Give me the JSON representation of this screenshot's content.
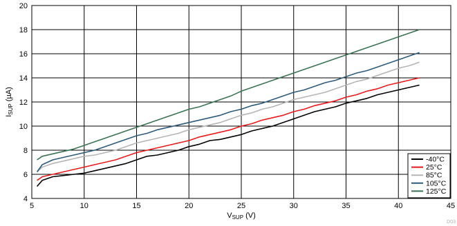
{
  "chart_data": {
    "type": "line",
    "xlabel": {
      "main": "V",
      "sub": "SUP",
      "unit": " (V)"
    },
    "ylabel": {
      "main": "I",
      "sub": "SUP",
      "unit": " (µA)"
    },
    "xlim": [
      5,
      45
    ],
    "ylim": [
      4,
      20
    ],
    "xticks": [
      "5",
      "10",
      "15",
      "20",
      "25",
      "30",
      "35",
      "40",
      "45"
    ],
    "yticks": [
      "4",
      "6",
      "8",
      "10",
      "12",
      "14",
      "16",
      "18",
      "20"
    ],
    "grid": true,
    "legend_position": "bottom-right",
    "watermark": "D03",
    "series": [
      {
        "name": "-40°C",
        "color": "#000000",
        "x": [
          5.5,
          6,
          7,
          8,
          9,
          10,
          11,
          12,
          13,
          14,
          15,
          16,
          17,
          18,
          19,
          20,
          21,
          22,
          23,
          24,
          25,
          26,
          27,
          28,
          29,
          30,
          31,
          32,
          33,
          34,
          35,
          36,
          37,
          38,
          39,
          40,
          41,
          42
        ],
        "y": [
          5.0,
          5.5,
          5.8,
          5.9,
          6.0,
          6.1,
          6.3,
          6.5,
          6.7,
          6.9,
          7.2,
          7.5,
          7.6,
          7.8,
          8.0,
          8.3,
          8.5,
          8.8,
          8.9,
          9.1,
          9.3,
          9.6,
          9.8,
          10.0,
          10.3,
          10.6,
          10.9,
          11.2,
          11.4,
          11.6,
          11.9,
          12.1,
          12.3,
          12.6,
          12.8,
          13.0,
          13.2,
          13.4
        ]
      },
      {
        "name": "25°C",
        "color": "#e8191c",
        "x": [
          5.5,
          6,
          7,
          8,
          9,
          10,
          11,
          12,
          13,
          14,
          15,
          16,
          17,
          18,
          19,
          20,
          21,
          22,
          23,
          24,
          25,
          26,
          27,
          28,
          29,
          30,
          31,
          32,
          33,
          34,
          35,
          36,
          37,
          38,
          39,
          40,
          41,
          42
        ],
        "y": [
          5.5,
          5.8,
          6.0,
          6.2,
          6.4,
          6.6,
          6.8,
          7.0,
          7.2,
          7.5,
          7.8,
          8.0,
          8.2,
          8.4,
          8.6,
          8.8,
          9.1,
          9.3,
          9.5,
          9.7,
          10.0,
          10.2,
          10.5,
          10.7,
          10.9,
          11.2,
          11.4,
          11.7,
          11.9,
          12.1,
          12.4,
          12.6,
          12.9,
          13.1,
          13.4,
          13.6,
          13.8,
          14.0
        ]
      },
      {
        "name": "85°C",
        "color": "#b5b5b5",
        "x": [
          5.5,
          6,
          7,
          8,
          9,
          10,
          11,
          12,
          13,
          14,
          15,
          16,
          17,
          18,
          19,
          20,
          21,
          22,
          23,
          24,
          25,
          26,
          27,
          28,
          29,
          30,
          31,
          32,
          33,
          34,
          35,
          36,
          37,
          38,
          39,
          40,
          41,
          42
        ],
        "y": [
          6.2,
          6.6,
          6.9,
          7.1,
          7.3,
          7.5,
          7.6,
          7.8,
          8.0,
          8.3,
          8.6,
          8.8,
          9.0,
          9.2,
          9.4,
          9.7,
          9.9,
          10.1,
          10.3,
          10.6,
          10.9,
          11.1,
          11.4,
          11.6,
          11.9,
          12.2,
          12.4,
          12.6,
          12.8,
          13.1,
          13.4,
          13.7,
          13.9,
          14.2,
          14.5,
          14.8,
          15.0,
          15.3
        ]
      },
      {
        "name": "105°C",
        "color": "#2d5a7a",
        "x": [
          5.5,
          6,
          7,
          8,
          9,
          10,
          11,
          12,
          13,
          14,
          15,
          16,
          17,
          18,
          19,
          20,
          21,
          22,
          23,
          24,
          25,
          26,
          27,
          28,
          29,
          30,
          31,
          32,
          33,
          34,
          35,
          36,
          37,
          38,
          39,
          40,
          41,
          42
        ],
        "y": [
          6.2,
          6.8,
          7.2,
          7.4,
          7.6,
          7.8,
          8.0,
          8.3,
          8.6,
          8.9,
          9.2,
          9.4,
          9.7,
          9.9,
          10.1,
          10.3,
          10.5,
          10.7,
          10.9,
          11.2,
          11.4,
          11.7,
          11.9,
          12.2,
          12.5,
          12.8,
          13.0,
          13.3,
          13.6,
          13.8,
          14.1,
          14.4,
          14.6,
          14.9,
          15.2,
          15.5,
          15.8,
          16.1
        ]
      },
      {
        "name": "125°C",
        "color": "#3b7254",
        "x": [
          5.5,
          6,
          7,
          8,
          9,
          10,
          11,
          12,
          13,
          14,
          15,
          16,
          17,
          18,
          19,
          20,
          21,
          22,
          23,
          24,
          25,
          26,
          27,
          28,
          29,
          30,
          31,
          32,
          33,
          34,
          35,
          36,
          37,
          38,
          39,
          40,
          41,
          42
        ],
        "y": [
          7.2,
          7.5,
          7.7,
          7.9,
          8.1,
          8.4,
          8.7,
          9.0,
          9.3,
          9.6,
          9.9,
          10.2,
          10.5,
          10.8,
          11.1,
          11.4,
          11.6,
          11.9,
          12.2,
          12.5,
          12.9,
          13.2,
          13.5,
          13.8,
          14.1,
          14.4,
          14.7,
          15.0,
          15.3,
          15.6,
          15.9,
          16.2,
          16.5,
          16.8,
          17.1,
          17.4,
          17.7,
          18.0
        ]
      }
    ]
  }
}
